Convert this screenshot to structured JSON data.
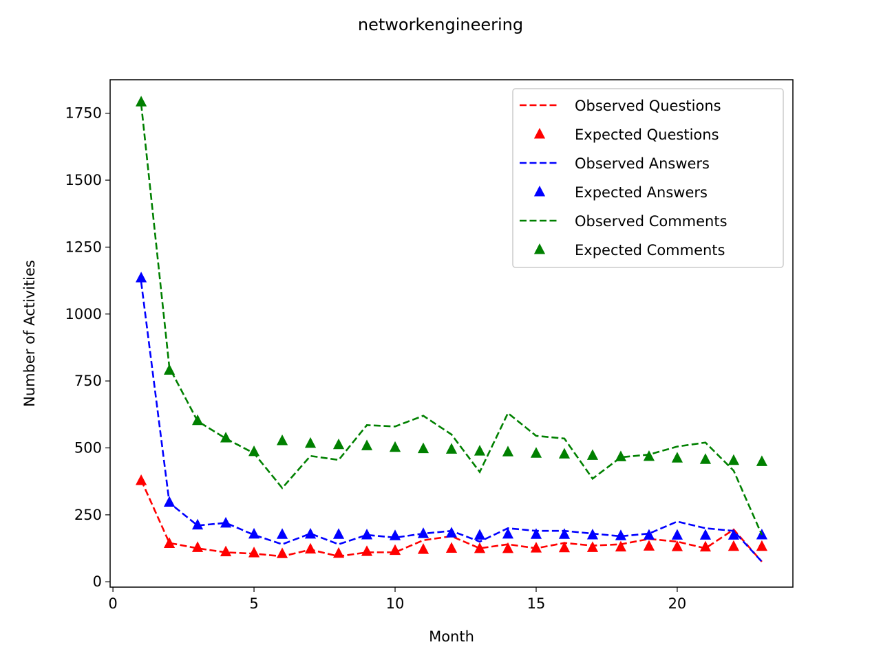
{
  "chart_data": {
    "type": "line",
    "title": "networkengineering",
    "xlabel": "Month",
    "ylabel": "Number of Activities",
    "xlim": [
      -0.1,
      24.1
    ],
    "ylim": [
      -20,
      1875
    ],
    "xticks": [
      0,
      5,
      10,
      15,
      20
    ],
    "yticks": [
      0,
      250,
      500,
      750,
      1000,
      1250,
      1500,
      1750
    ],
    "grid": false,
    "legend_position": "top-right",
    "x": [
      1,
      2,
      3,
      4,
      5,
      6,
      7,
      8,
      9,
      10,
      11,
      12,
      13,
      14,
      15,
      16,
      17,
      18,
      19,
      20,
      21,
      22,
      23
    ],
    "series": [
      {
        "name": "Observed Questions",
        "style": "dashed",
        "color": "#ff0000",
        "values": [
          380,
          145,
          125,
          110,
          105,
          95,
          120,
          95,
          110,
          110,
          155,
          170,
          125,
          140,
          125,
          145,
          135,
          140,
          160,
          150,
          125,
          195,
          75
        ]
      },
      {
        "name": "Expected Questions",
        "style": "triangle",
        "color": "#ff0000",
        "values": [
          378,
          143,
          128,
          112,
          108,
          105,
          122,
          106,
          113,
          117,
          121,
          125,
          124,
          124,
          126,
          127,
          128,
          130,
          133,
          131,
          130,
          132,
          132
        ]
      },
      {
        "name": "Observed Answers",
        "style": "dashed",
        "color": "#0000ff",
        "values": [
          1120,
          295,
          210,
          220,
          175,
          140,
          180,
          140,
          175,
          165,
          180,
          190,
          150,
          200,
          190,
          190,
          180,
          170,
          180,
          225,
          200,
          190,
          75
        ]
      },
      {
        "name": "Expected Answers",
        "style": "triangle",
        "color": "#0000ff",
        "values": [
          1135,
          297,
          212,
          219,
          178,
          177,
          178,
          177,
          175,
          172,
          180,
          182,
          174,
          178,
          177,
          177,
          175,
          172,
          174,
          174,
          174,
          174,
          175
        ]
      },
      {
        "name": "Observed Comments",
        "style": "dashed",
        "color": "#008000",
        "values": [
          1785,
          800,
          600,
          535,
          480,
          350,
          470,
          455,
          585,
          580,
          620,
          550,
          410,
          630,
          545,
          535,
          385,
          465,
          475,
          505,
          520,
          415,
          175
        ]
      },
      {
        "name": "Expected Comments",
        "style": "triangle",
        "color": "#008000",
        "values": [
          1792,
          790,
          602,
          537,
          486,
          527,
          517,
          512,
          508,
          502,
          497,
          495,
          488,
          485,
          480,
          477,
          472,
          467,
          468,
          462,
          457,
          453,
          449
        ]
      }
    ]
  }
}
